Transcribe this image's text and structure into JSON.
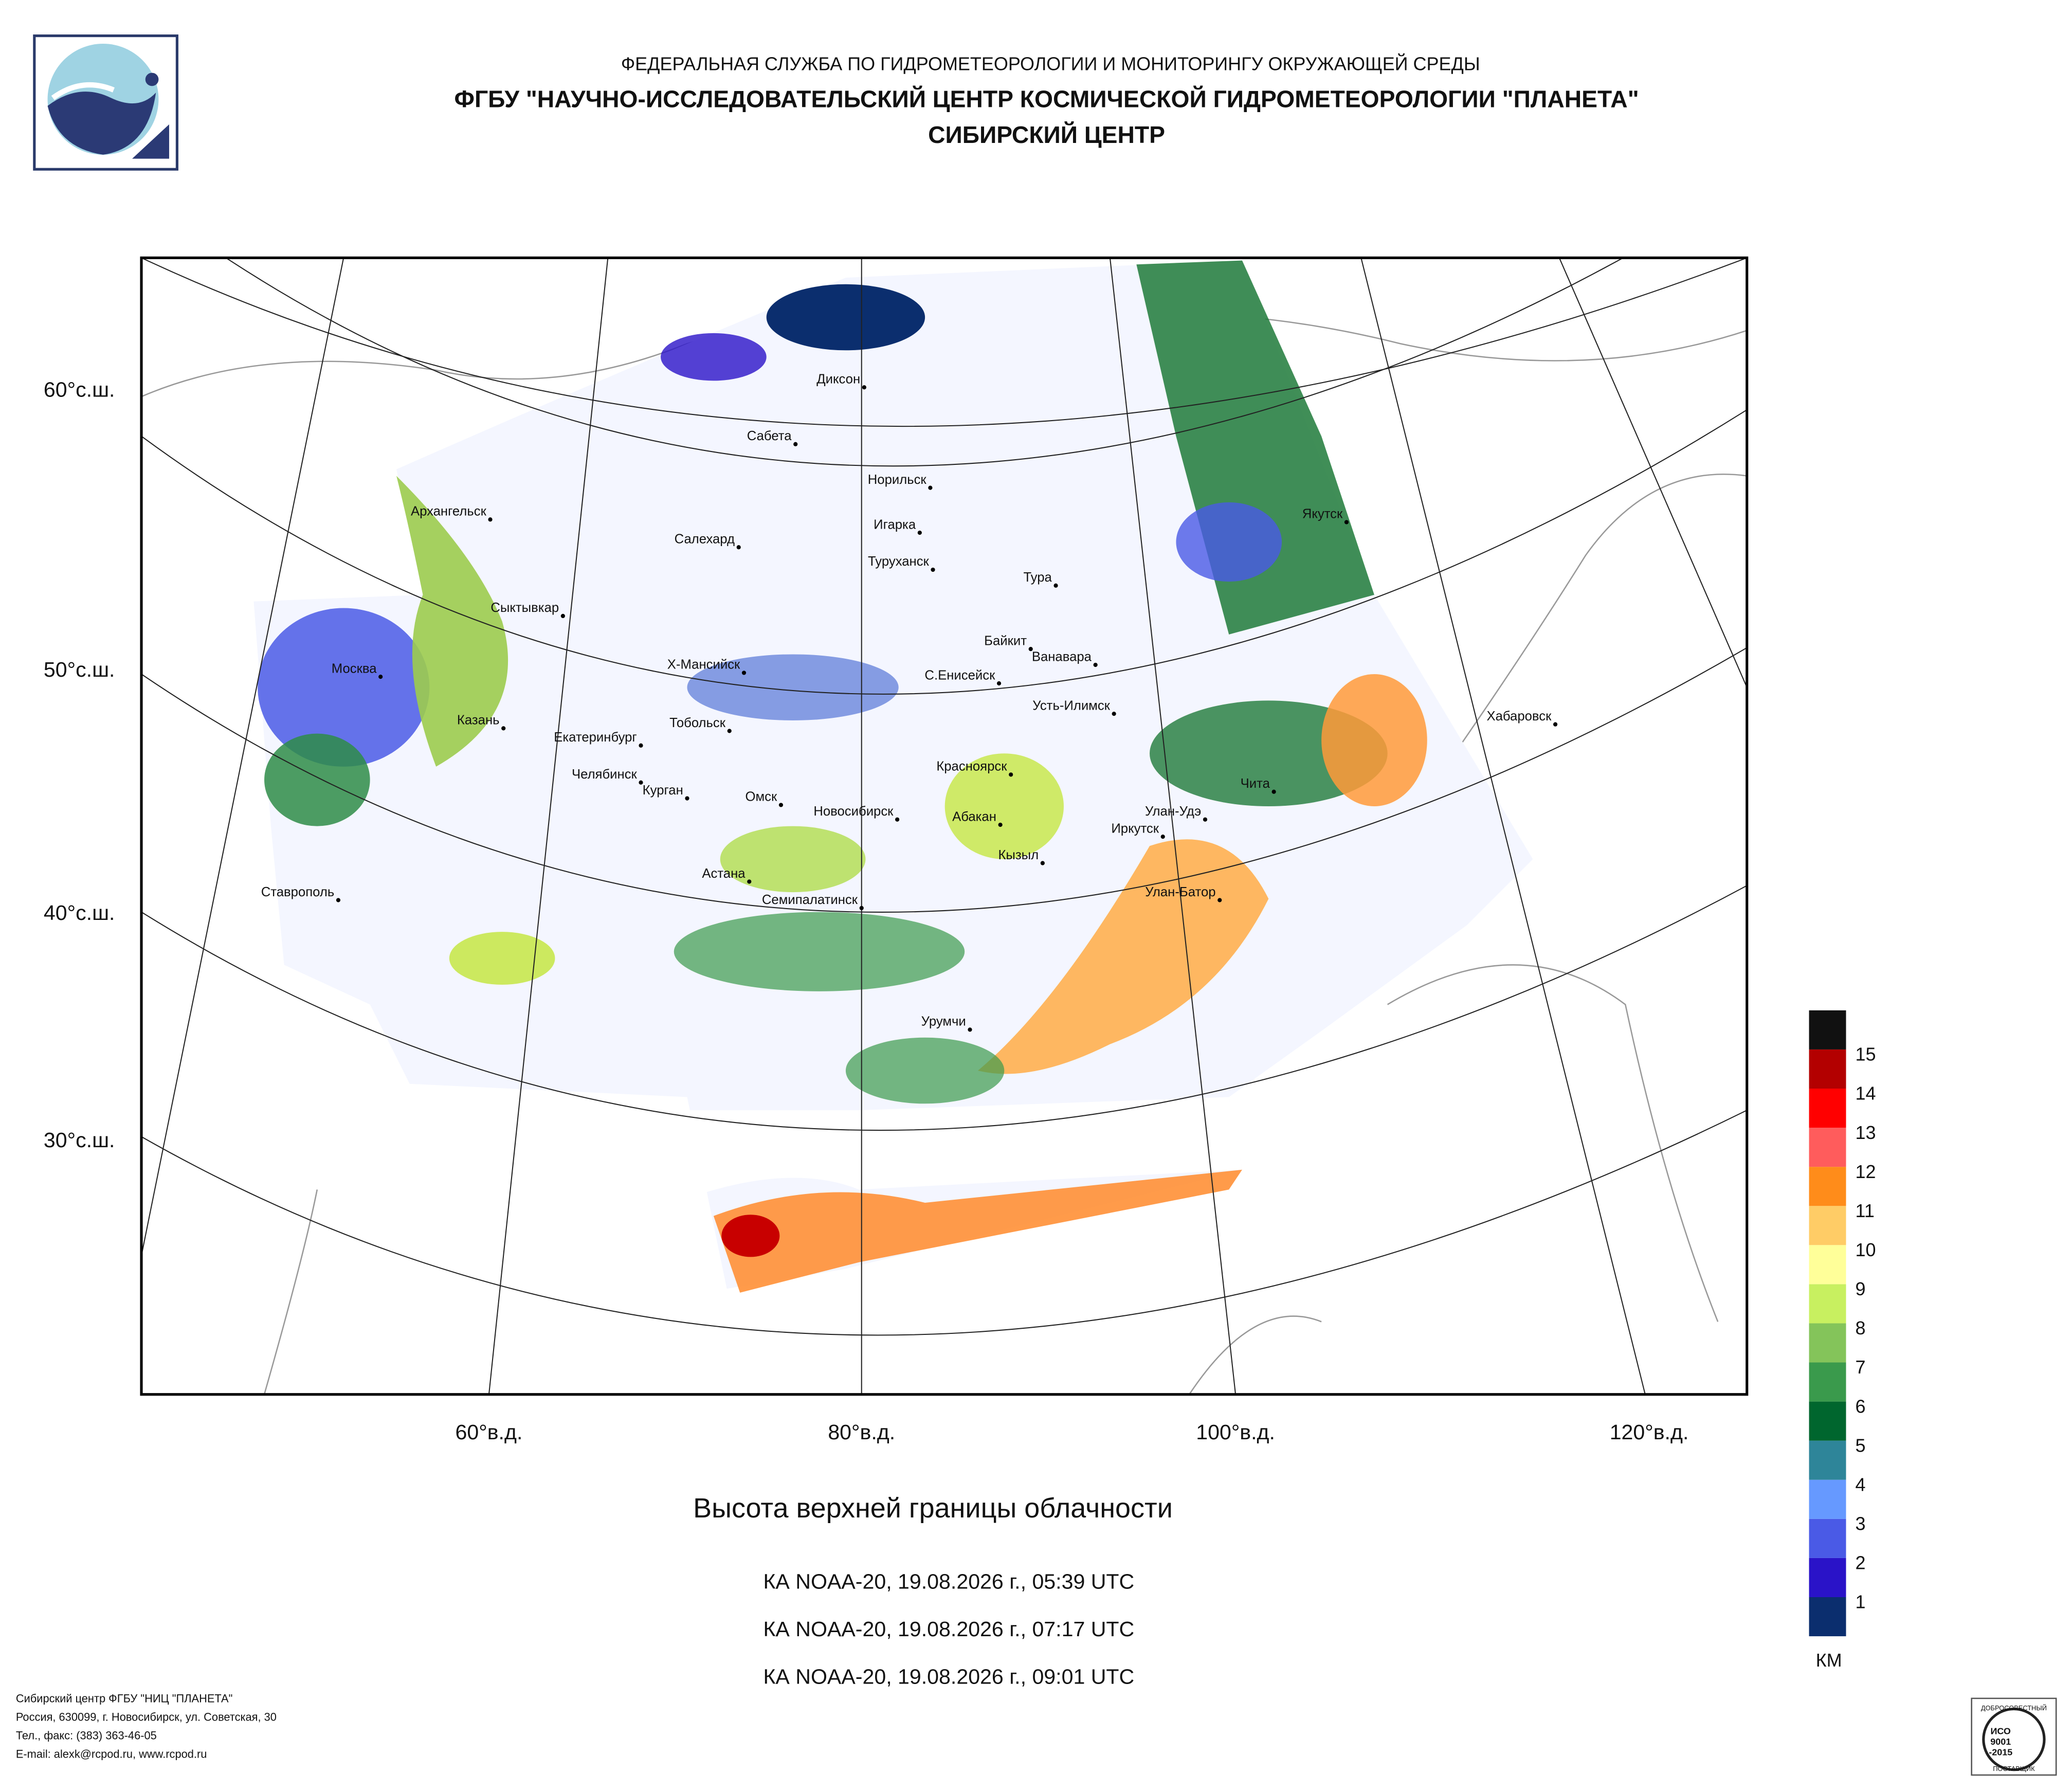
{
  "header": {
    "agency": "ФЕДЕРАЛЬНАЯ СЛУЖБА ПО ГИДРОМЕТЕОРОЛОГИИ И МОНИТОРИНГУ ОКРУЖАЮЩЕЙ СРЕДЫ",
    "center": "ФГБУ \"НАУЧНО-ИССЛЕДОВАТЕЛЬСКИЙ ЦЕНТР КОСМИЧЕСКОЙ ГИДРОМЕТЕОРОЛОГИИ \"ПЛАНЕТА\"",
    "branch": "СИБИРСКИЙ ЦЕНТР"
  },
  "map": {
    "lat_labels": [
      "60°с.ш.",
      "50°с.ш.",
      "40°с.ш.",
      "30°с.ш."
    ],
    "lon_labels": [
      "60°в.д.",
      "80°в.д.",
      "100°в.д.",
      "120°в.д."
    ],
    "cities": [
      "Диксон",
      "Сабета",
      "Норильск",
      "Игарка",
      "Салехард",
      "Туруханск",
      "Архангельск",
      "Якутск",
      "Тура",
      "Сыктывкар",
      "Байкит",
      "Ванавара",
      "Москва",
      "Х-Мансийск",
      "С.Енисейск",
      "Усть-Илимск",
      "Хабаровск",
      "Казань",
      "Тобольск",
      "Екатеринбург",
      "Красноярск",
      "Чита",
      "Челябинск",
      "Курган",
      "Омск",
      "Новосибирск",
      "Улан-Удэ",
      "Абакан",
      "Иркутск",
      "Кызыл",
      "Ставрополь",
      "Астана",
      "Улан-Батор",
      "Семипалатинск",
      "Урумчи"
    ]
  },
  "legend": {
    "ticks": [
      1,
      2,
      3,
      4,
      5,
      6,
      7,
      8,
      9,
      10,
      11,
      12,
      13,
      14,
      15
    ],
    "colors": [
      "#0b2e6e",
      "#2a13c8",
      "#4a5ae6",
      "#6699ff",
      "#2e8599",
      "#00662e",
      "#3a9a4c",
      "#84c45a",
      "#c8f060",
      "#ffff99",
      "#ffcc66",
      "#ff8c1a",
      "#ff5c5c",
      "#ff0000",
      "#b30000",
      "#111111"
    ],
    "unit": "КМ"
  },
  "title": "Высота верхней границы облачности",
  "passes": [
    "КА NOAA-20, 19.08.2026 г., 05:39 UTC",
    "КА NOAA-20, 19.08.2026 г., 07:17 UTC",
    "КА NOAA-20, 19.08.2026 г., 09:01 UTC"
  ],
  "footer": [
    "Сибирский центр ФГБУ \"НИЦ \"ПЛАНЕТА\"",
    "Россия, 630099, г. Новосибирск, ул. Советская, 30",
    "Тел., факс: (383) 363-46-05",
    "E-mail: alexk@rcpod.ru, www.rcpod.ru"
  ],
  "badge": [
    "ДОБРОСОВЕСТНЫЙ",
    "ИСО",
    "9001",
    "-2015",
    "ПОСТАВЩИК"
  ]
}
